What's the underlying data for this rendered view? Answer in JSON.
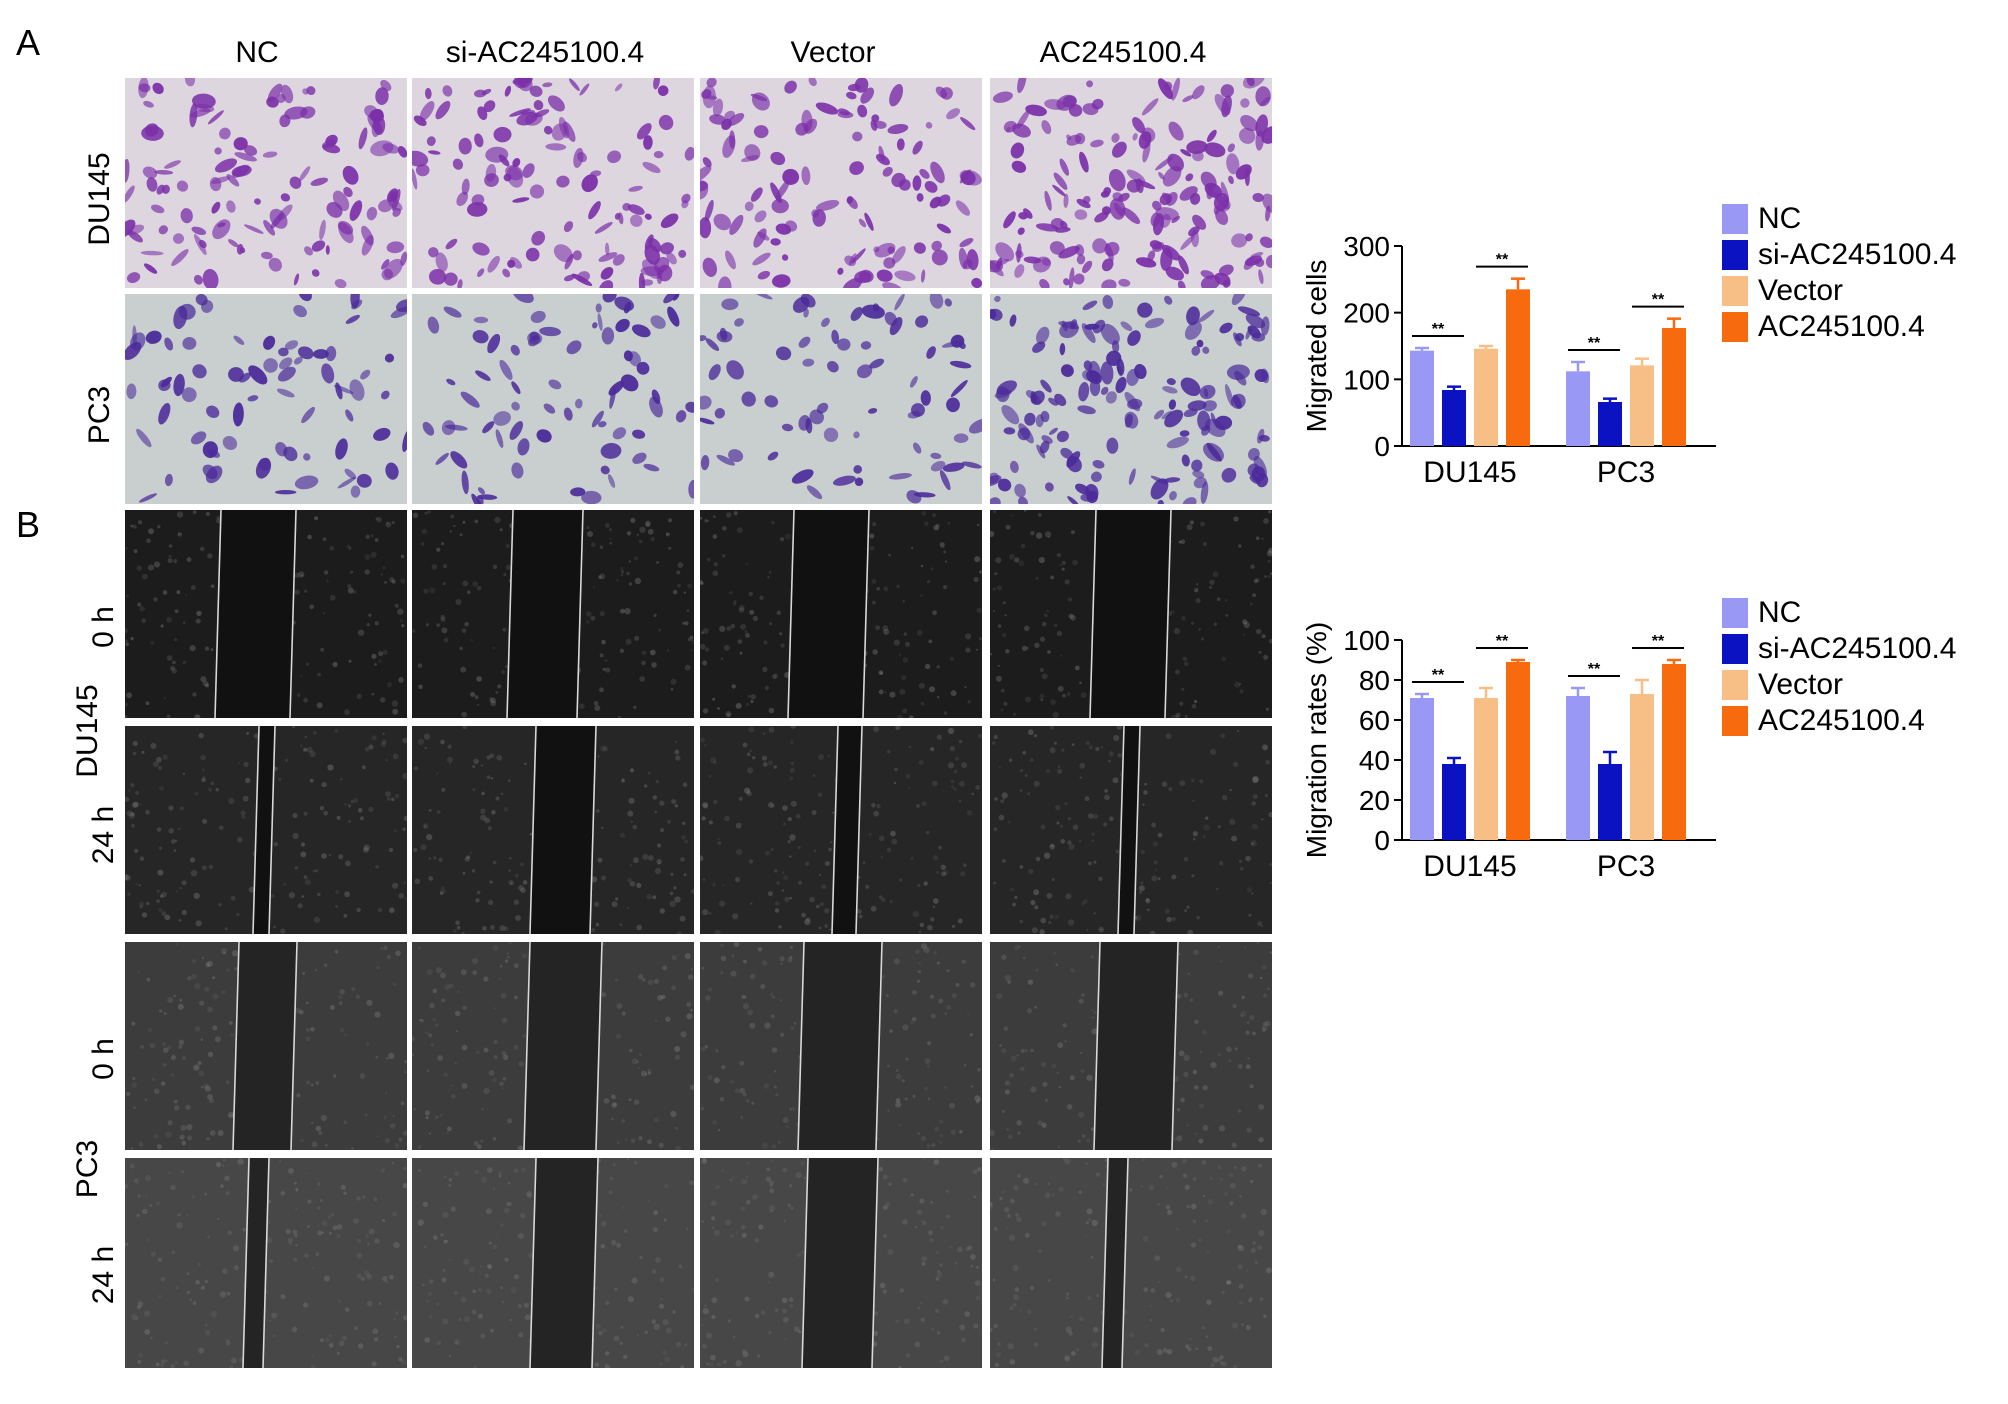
{
  "panel_a": {
    "letter": "A",
    "columns": [
      "NC",
      "si-AC245100.4",
      "Vector",
      "AC245100.4"
    ],
    "rows": [
      "DU145",
      "PC3"
    ]
  },
  "panel_b": {
    "letter": "B",
    "groups": [
      "DU145",
      "PC3"
    ],
    "timepoints": [
      "0 h",
      "24 h"
    ]
  },
  "colors": {
    "NC": "#9a98f5",
    "si": "#0b12c2",
    "Vector": "#f7bf86",
    "AC": "#f76a0e",
    "stain_bg": "#d6d2dc",
    "stain_cell": "#7b2fa8"
  },
  "chart_data": [
    {
      "type": "bar",
      "ylabel": "Migrated cells",
      "categories": [
        "DU145",
        "PC3"
      ],
      "ylim": [
        0,
        300
      ],
      "yticks": [
        "0",
        "100",
        "200",
        "300"
      ],
      "series": [
        {
          "name": "NC",
          "values": [
            143,
            112
          ],
          "errors": [
            4,
            14
          ]
        },
        {
          "name": "si-AC245100.4",
          "values": [
            84,
            66
          ],
          "errors": [
            5,
            5
          ]
        },
        {
          "name": "Vector",
          "values": [
            146,
            121
          ],
          "errors": [
            4,
            10
          ]
        },
        {
          "name": "AC245100.4",
          "values": [
            235,
            177
          ],
          "errors": [
            16,
            14
          ]
        }
      ],
      "significance": [
        "**",
        "**",
        "**",
        "**"
      ],
      "legend": "right"
    },
    {
      "type": "bar",
      "ylabel": "Migration rates (%)",
      "categories": [
        "DU145",
        "PC3"
      ],
      "ylim": [
        0,
        100
      ],
      "yticks": [
        "0",
        "20",
        "40",
        "60",
        "80",
        "100"
      ],
      "series": [
        {
          "name": "NC",
          "values": [
            71,
            72
          ],
          "errors": [
            2,
            4
          ]
        },
        {
          "name": "si-AC245100.4",
          "values": [
            38,
            38
          ],
          "errors": [
            3,
            6
          ]
        },
        {
          "name": "Vector",
          "values": [
            71,
            73
          ],
          "errors": [
            5,
            7
          ]
        },
        {
          "name": "AC245100.4",
          "values": [
            89,
            88
          ],
          "errors": [
            1,
            2
          ]
        }
      ],
      "significance": [
        "**",
        "**",
        "**",
        "**"
      ],
      "legend": "right"
    }
  ]
}
